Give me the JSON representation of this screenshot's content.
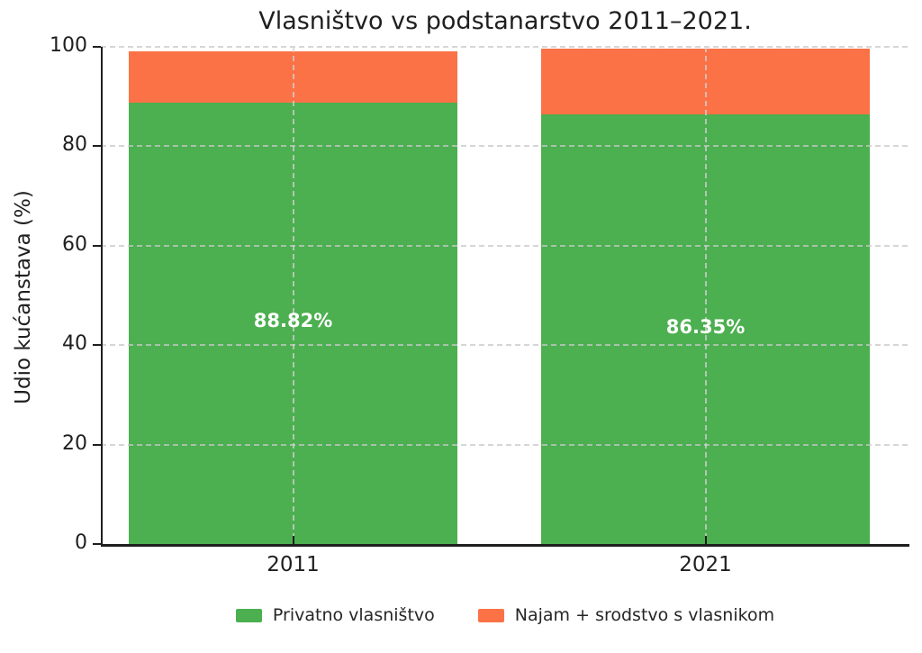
{
  "chart_data": {
    "type": "bar",
    "stacked": true,
    "title": "Vlasništvo vs podstanarstvo 2011–2021.",
    "xlabel": "",
    "ylabel": "Udio kućanstava (%)",
    "categories": [
      "2011",
      "2021"
    ],
    "series": [
      {
        "name": "Privatno vlasništvo",
        "color": "#4caf50",
        "values": [
          88.82,
          86.35
        ],
        "value_labels": [
          "88.82%",
          "86.35%"
        ]
      },
      {
        "name": "Najam + srodstvo s vlasnikom",
        "color": "#fb7246",
        "values": [
          10.3,
          13.3
        ],
        "value_labels": [
          "",
          ""
        ]
      }
    ],
    "ylim": [
      0,
      100
    ],
    "yticks": [
      "0",
      "20",
      "40",
      "60",
      "80",
      "100"
    ],
    "grid": true,
    "grid_style": "dashed",
    "legend_position": "bottom-center"
  },
  "colors": {
    "green": "#4caf50",
    "orange": "#fb7246",
    "text": "#1f1f1f",
    "grid": "#d4d4d4",
    "background": "#ffffff",
    "bar_label_text": "#ffffff"
  }
}
